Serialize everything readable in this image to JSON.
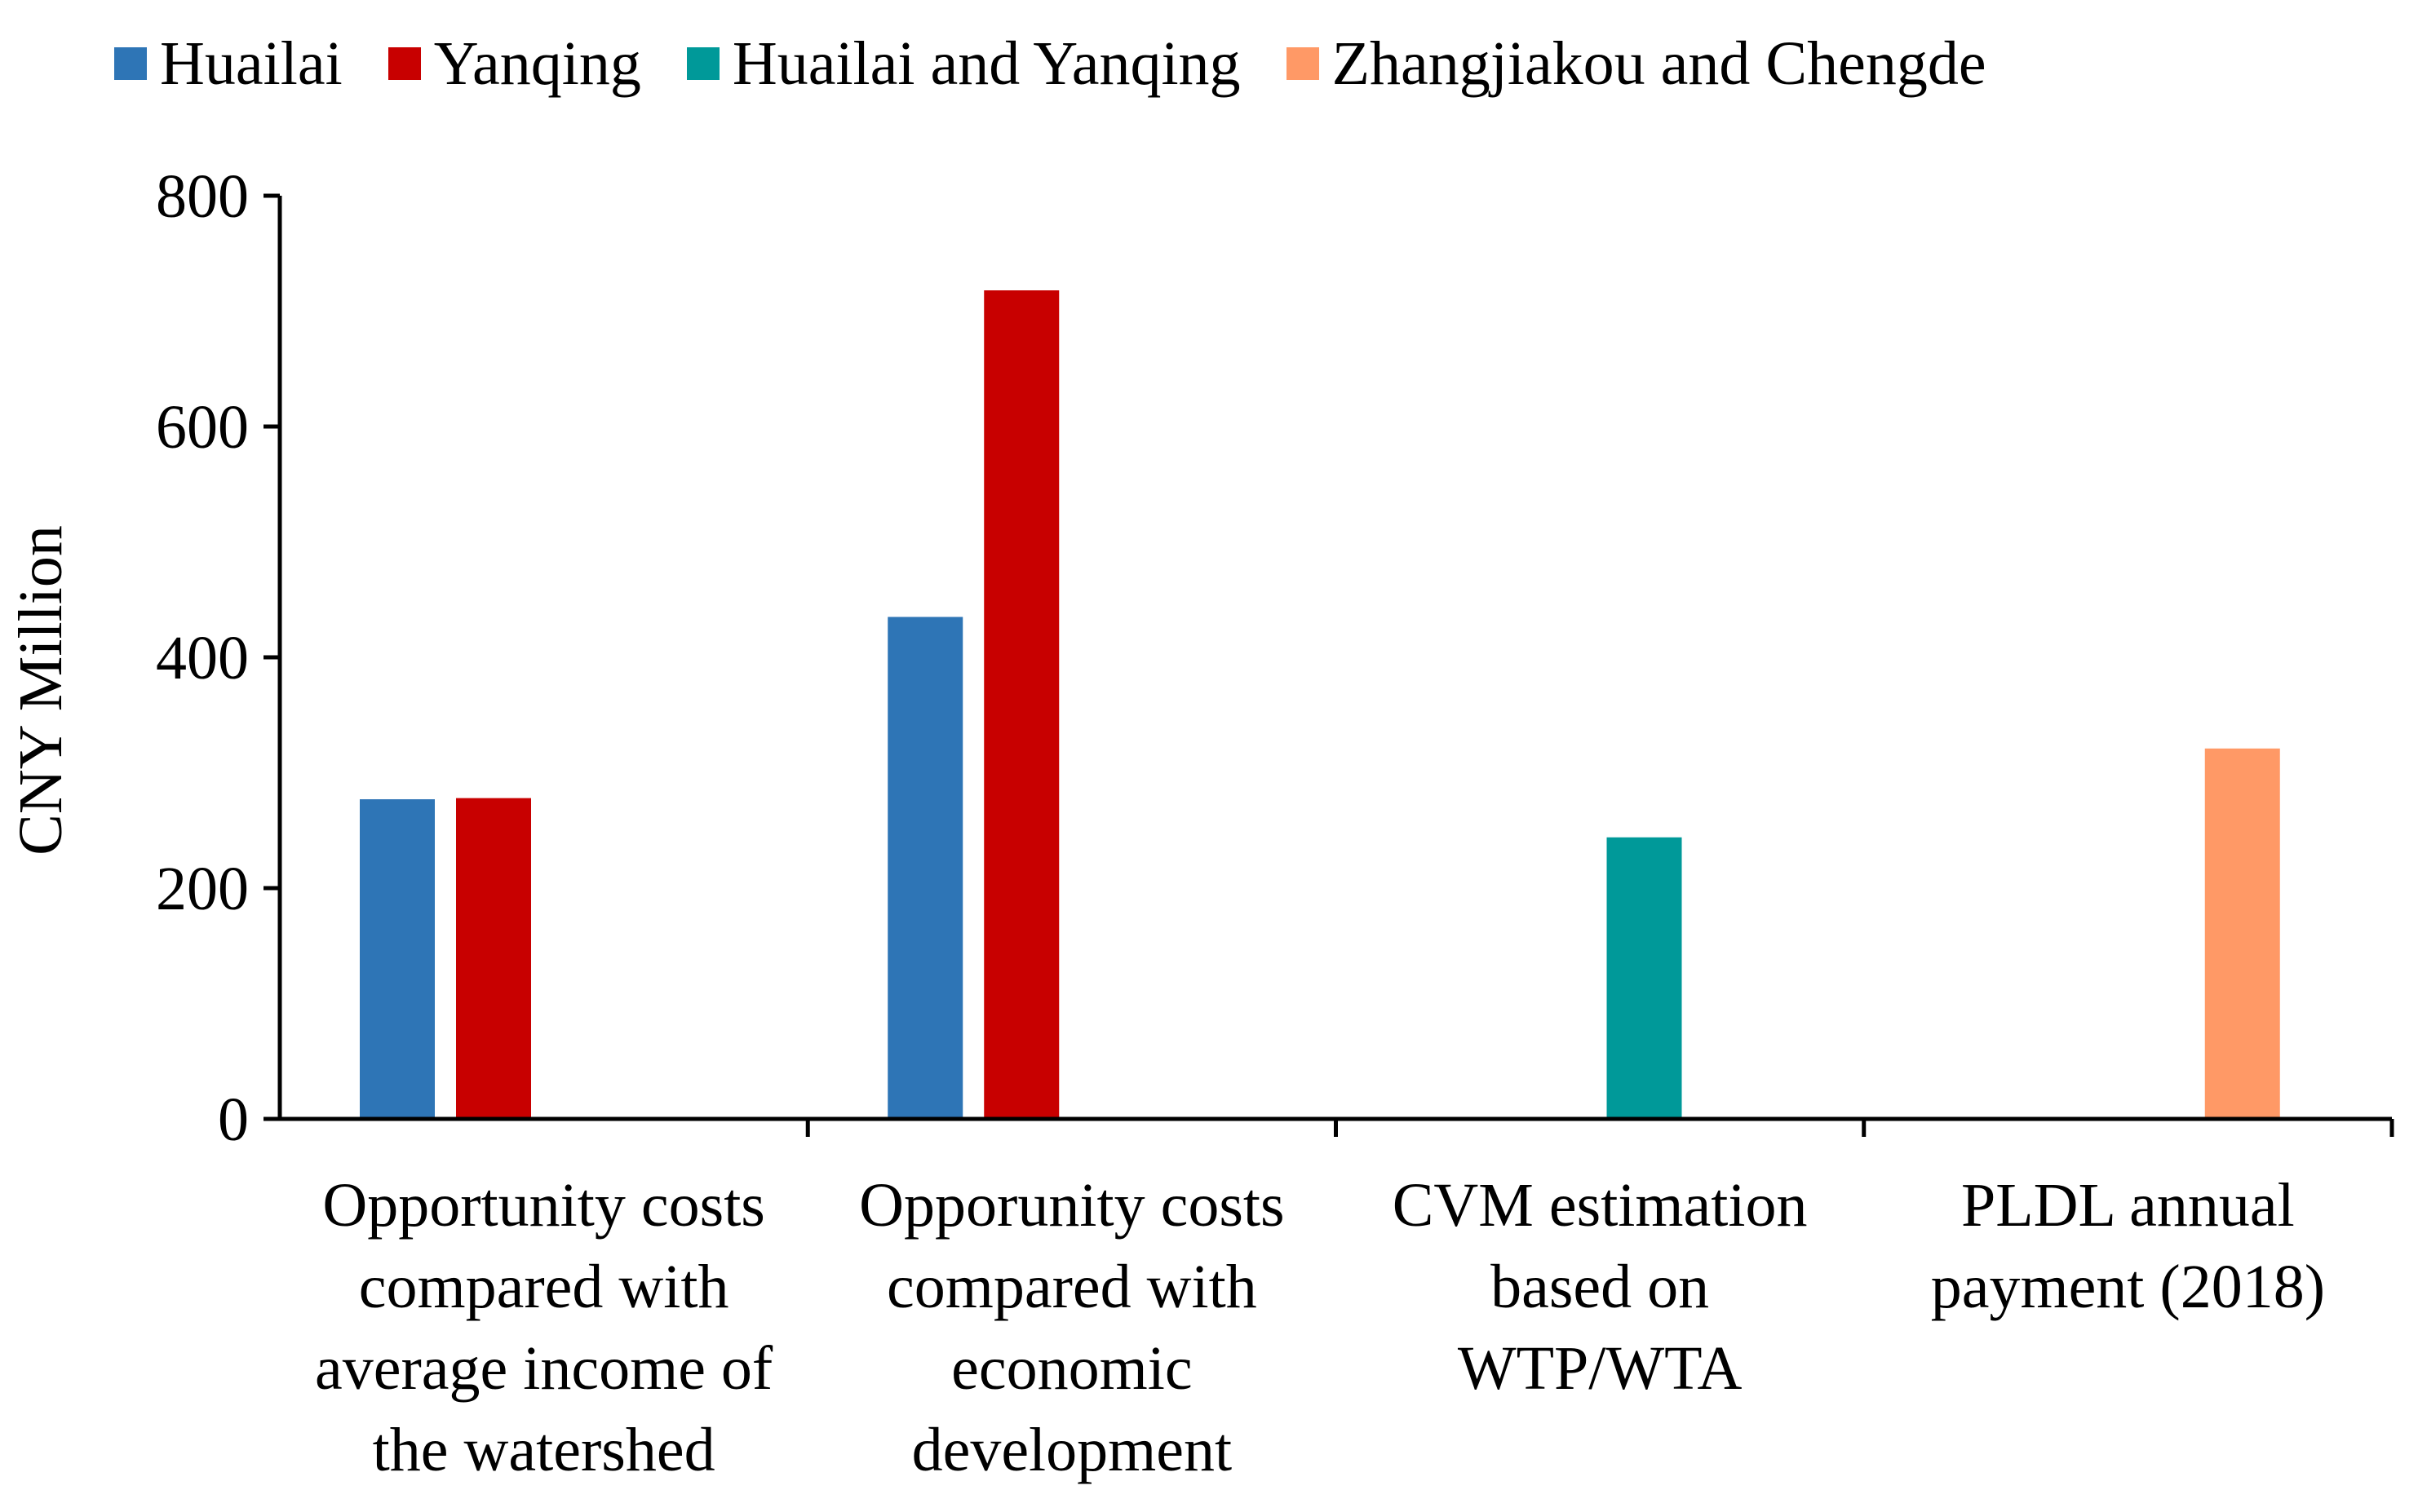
{
  "chart_data": {
    "type": "bar",
    "title": "",
    "xlabel": "",
    "ylabel": "CNY Million",
    "ylim": [
      0,
      800
    ],
    "yticks": [
      0,
      200,
      400,
      600,
      800
    ],
    "grid": false,
    "legend_position": "top",
    "categories": [
      "Opportunity costs compared with average income of the watershed",
      "Opporunity costs compared with economic development",
      "CVM estimation based on WTP/WTA",
      "PLDL annual payment (2018)"
    ],
    "category_lines": [
      [
        "Opportunity costs",
        "compared with",
        "average income of",
        "the watershed"
      ],
      [
        "Opporunity costs",
        "compared with",
        "economic",
        "development"
      ],
      [
        "CVM estimation",
        "based on",
        "WTP/WTA"
      ],
      [
        "PLDL annual",
        "payment (2018)"
      ]
    ],
    "series": [
      {
        "name": "Huailai",
        "color": "#2E75B6",
        "values": [
          277,
          435,
          null,
          null
        ]
      },
      {
        "name": "Yanqing",
        "color": "#C80000",
        "values": [
          278,
          718,
          null,
          null
        ]
      },
      {
        "name": "Huailai and Yanqing",
        "color": "#009999",
        "values": [
          null,
          null,
          244,
          null
        ]
      },
      {
        "name": "Zhangjiakou and Chengde",
        "color": "#FF9966",
        "values": [
          null,
          null,
          null,
          321
        ]
      }
    ]
  }
}
